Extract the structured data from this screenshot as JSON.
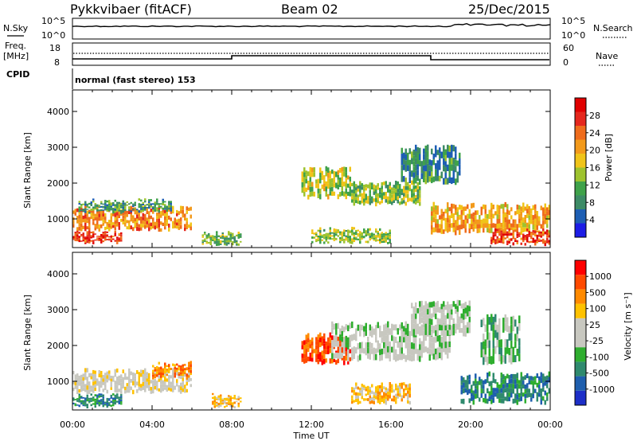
{
  "header": {
    "station": "Pykkvibaer (fitACF)",
    "beam": "Beam 02",
    "date": "25/Dec/2015"
  },
  "strip_panels": {
    "noise": {
      "left_label": "N.Sky",
      "left_ticks": [
        "10^5",
        "10^0"
      ],
      "right_ticks": [
        "10^5",
        "10^0"
      ],
      "right_label": "N.Search"
    },
    "freq": {
      "left_label_line1": "Freq.",
      "left_label_line2": "[MHz]",
      "left_ticks": [
        "18",
        "8"
      ],
      "right_ticks": [
        "60",
        "0"
      ],
      "right_label": "Nave"
    },
    "cpid": {
      "label": "CPID",
      "text": "normal (fast stereo) 153"
    }
  },
  "x_axis": {
    "label": "Time UT",
    "ticks": [
      "00:00",
      "04:00",
      "08:00",
      "12:00",
      "16:00",
      "20:00",
      "00:00"
    ]
  },
  "colors": {
    "power_scale": [
      "#1d1de6",
      "#1e5fb4",
      "#3d8b66",
      "#3fa24a",
      "#9ec32e",
      "#f0c419",
      "#f39a1b",
      "#ef6c1c",
      "#e5271d",
      "#e00000"
    ],
    "velocity_scale": [
      "#ff0000",
      "#ff4a00",
      "#ff8a00",
      "#ffc200",
      "#c8c8c0",
      "#c8c8c0",
      "#2fae2f",
      "#2f8a6e",
      "#1f5fae",
      "#1d2fc8"
    ]
  },
  "chart_data": [
    {
      "type": "heatmap",
      "name": "power",
      "ylabel": "Slant Range [km]",
      "yticks": [
        "1000",
        "2000",
        "3000",
        "4000"
      ],
      "ylim": [
        200,
        4600
      ],
      "xlim": [
        0,
        24
      ],
      "colorbar_label": "Power [dB]",
      "colorbar_ticks": [
        "4",
        "8",
        "12",
        "16",
        "20",
        "24",
        "28"
      ],
      "colorbar_range": [
        0,
        32
      ],
      "regions": [
        {
          "t0": 0.0,
          "t1": 6.0,
          "r0": 700,
          "r1": 1300,
          "v": 22
        },
        {
          "t0": 0.0,
          "t1": 2.5,
          "r0": 350,
          "r1": 600,
          "v": 27
        },
        {
          "t0": 0.3,
          "t1": 5.0,
          "r0": 1200,
          "r1": 1500,
          "v": 10
        },
        {
          "t0": 6.5,
          "t1": 8.5,
          "r0": 300,
          "r1": 600,
          "v": 12
        },
        {
          "t0": 11.5,
          "t1": 14.0,
          "r0": 1600,
          "r1": 2400,
          "v": 15
        },
        {
          "t0": 14.0,
          "t1": 17.5,
          "r0": 1400,
          "r1": 2000,
          "v": 13
        },
        {
          "t0": 16.5,
          "t1": 19.5,
          "r0": 2000,
          "r1": 3000,
          "v": 9
        },
        {
          "t0": 18.0,
          "t1": 24.0,
          "r0": 600,
          "r1": 1400,
          "v": 20
        },
        {
          "t0": 21.0,
          "t1": 24.0,
          "r0": 300,
          "r1": 700,
          "v": 26
        },
        {
          "t0": 12.0,
          "t1": 16.0,
          "r0": 350,
          "r1": 700,
          "v": 14
        }
      ]
    },
    {
      "type": "heatmap",
      "name": "velocity",
      "ylabel": "Slant Range [km]",
      "yticks": [
        "1000",
        "2000",
        "3000",
        "4000"
      ],
      "ylim": [
        200,
        4600
      ],
      "xlim": [
        0,
        24
      ],
      "colorbar_label": "Velocity [m s⁻¹]",
      "colorbar_ticks": [
        "1000",
        "500",
        "100",
        "25",
        "-25",
        "-100",
        "-500",
        "-1000"
      ],
      "regions": [
        {
          "t0": 0.0,
          "t1": 6.0,
          "r0": 700,
          "r1": 1300,
          "k": 4
        },
        {
          "t0": 0.0,
          "t1": 2.5,
          "r0": 300,
          "r1": 600,
          "k": 7
        },
        {
          "t0": 4.0,
          "t1": 6.0,
          "r0": 1100,
          "r1": 1500,
          "k": 2
        },
        {
          "t0": 7.0,
          "t1": 8.5,
          "r0": 300,
          "r1": 600,
          "k": 3
        },
        {
          "t0": 11.5,
          "t1": 14.0,
          "r0": 1500,
          "r1": 2300,
          "k": 1
        },
        {
          "t0": 13.0,
          "t1": 19.0,
          "r0": 1600,
          "r1": 2600,
          "k": 5
        },
        {
          "t0": 17.0,
          "t1": 20.0,
          "r0": 2300,
          "r1": 3200,
          "k": 5
        },
        {
          "t0": 19.5,
          "t1": 24.0,
          "r0": 400,
          "r1": 1200,
          "k": 7
        },
        {
          "t0": 20.5,
          "t1": 22.5,
          "r0": 1500,
          "r1": 2800,
          "k": 6
        },
        {
          "t0": 14.0,
          "t1": 17.0,
          "r0": 400,
          "r1": 900,
          "k": 3
        }
      ]
    }
  ]
}
